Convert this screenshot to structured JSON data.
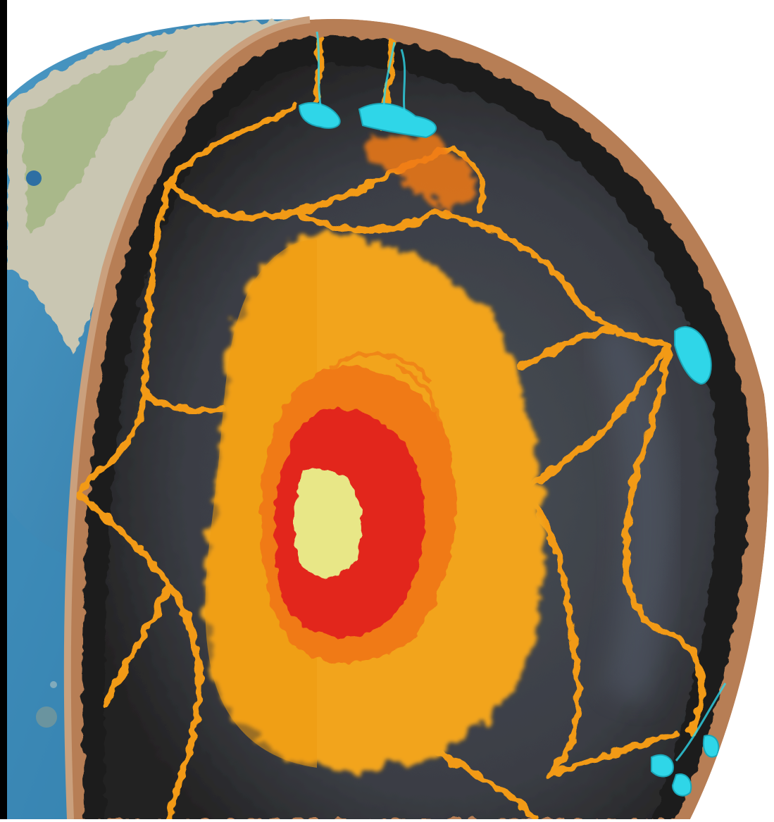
{
  "colors": {
    "background": "#ffffff",
    "frame_edge": "#000000",
    "ocean": "#2d7fae",
    "ocean_light": "#4a98c4",
    "land": "#c9c6b2",
    "land_green": "#8fae6a",
    "crust_rim": "#b77e55",
    "mantle_outer": "#1d1c1b",
    "mantle": "#3c3f46",
    "mantle_blue": "#5a6473",
    "plume_network": "#f29a12",
    "plume_highlight": "#ffb534",
    "outer_core": "#f2a41b",
    "core_ring": "#f07a14",
    "inner_core_red": "#e2261c",
    "inner_core_center": "#e8e787",
    "subducted_slab": "#2fd6e8"
  },
  "icons": [
    "earth-cutaway",
    "magma-plume",
    "core",
    "subducted-slab"
  ]
}
